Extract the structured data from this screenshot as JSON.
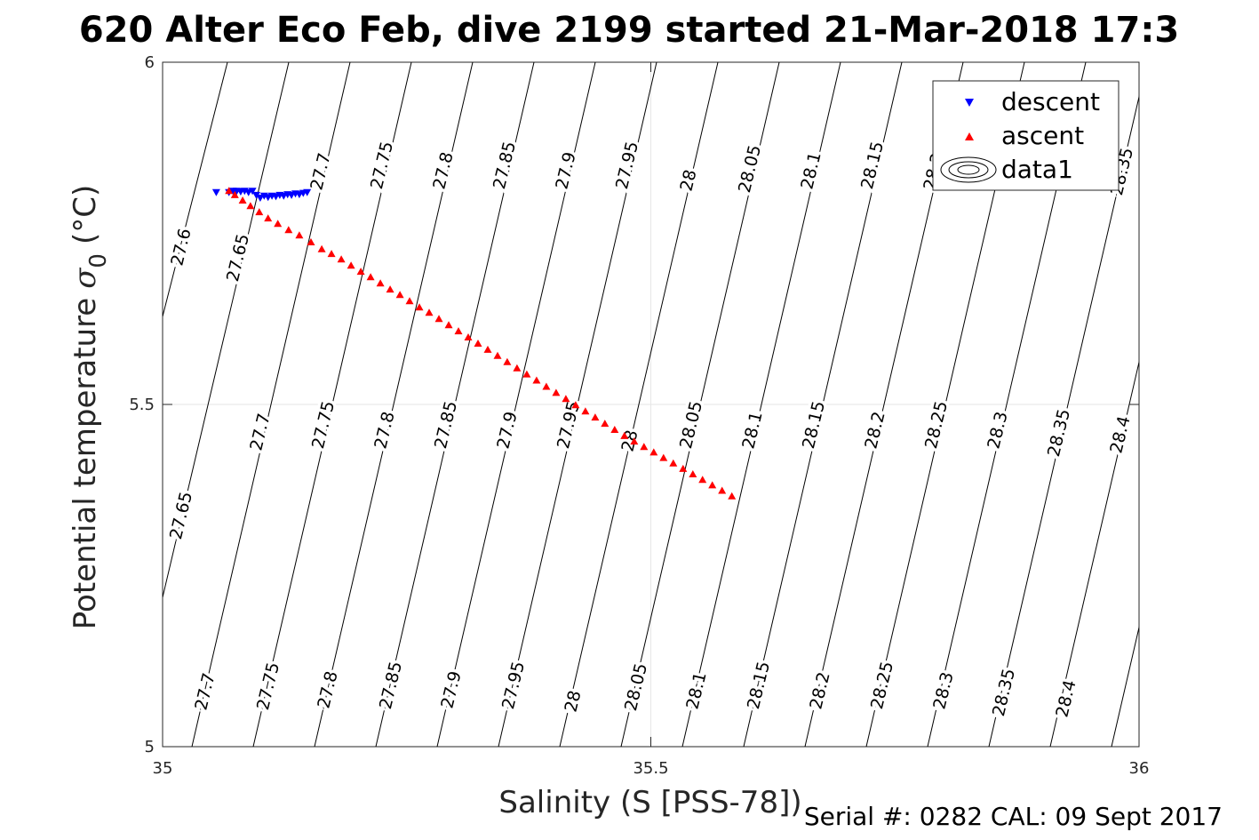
{
  "title": "620 Alter Eco Feb, dive 2199 started 21-Mar-2018 17:3",
  "footer": "Serial #: 0282  CAL: 09 Sept 2017",
  "chart_data": {
    "type": "scatter",
    "xlabel": "Salinity (S [PSS-78])",
    "ylabel_text": "Potential temperature",
    "ylabel_symbol": "σ",
    "ylabel_subscript": "0",
    "ylabel_unit": "(°C)",
    "xlim": [
      35,
      36
    ],
    "ylim": [
      5,
      6
    ],
    "x_ticks": [
      "35",
      "35.5",
      "36"
    ],
    "y_ticks": [
      "5",
      "5.5",
      "6"
    ],
    "grid": true,
    "legend": {
      "placement": "top-right",
      "entries": [
        "descent",
        "ascent",
        "data1"
      ]
    },
    "series": [
      {
        "name": "descent",
        "marker": "triangle-down",
        "color": "#0000ff",
        "x": [
          35.055,
          35.068,
          35.072,
          35.076,
          35.08,
          35.084,
          35.088,
          35.092,
          35.096,
          35.1,
          35.104,
          35.108,
          35.112,
          35.116,
          35.12,
          35.124,
          35.128,
          35.132,
          35.136,
          35.14,
          35.144,
          35.148
        ],
        "y": [
          5.81,
          5.81,
          5.812,
          5.812,
          5.811,
          5.812,
          5.81,
          5.812,
          5.806,
          5.802,
          5.805,
          5.803,
          5.805,
          5.804,
          5.806,
          5.805,
          5.807,
          5.806,
          5.808,
          5.807,
          5.809,
          5.81
        ]
      },
      {
        "name": "ascent",
        "marker": "triangle-up",
        "color": "#ff0000",
        "x": [
          35.068,
          35.074,
          35.082,
          35.09,
          35.099,
          35.108,
          35.118,
          35.129,
          35.14,
          35.152,
          35.163,
          35.173,
          35.183,
          35.193,
          35.203,
          35.213,
          35.223,
          35.233,
          35.243,
          35.253,
          35.263,
          35.273,
          35.283,
          35.293,
          35.303,
          35.313,
          35.323,
          35.333,
          35.343,
          35.353,
          35.363,
          35.373,
          35.383,
          35.393,
          35.403,
          35.413,
          35.423,
          35.433,
          35.443,
          35.453,
          35.463,
          35.473,
          35.483,
          35.493,
          35.503,
          35.513,
          35.523,
          35.533,
          35.543,
          35.553,
          35.563,
          35.573,
          35.583
        ],
        "y": [
          5.812,
          5.806,
          5.798,
          5.79,
          5.781,
          5.772,
          5.764,
          5.755,
          5.747,
          5.737,
          5.727,
          5.72,
          5.712,
          5.703,
          5.694,
          5.686,
          5.677,
          5.668,
          5.66,
          5.651,
          5.642,
          5.634,
          5.625,
          5.616,
          5.607,
          5.598,
          5.589,
          5.58,
          5.571,
          5.562,
          5.553,
          5.544,
          5.535,
          5.526,
          5.517,
          5.508,
          5.499,
          5.49,
          5.481,
          5.472,
          5.463,
          5.454,
          5.446,
          5.438,
          5.43,
          5.422,
          5.414,
          5.406,
          5.398,
          5.39,
          5.382,
          5.374,
          5.366
        ]
      }
    ],
    "contours": {
      "name": "data1",
      "type": "density-isopycnals",
      "levels": [
        "27.6",
        "27.65",
        "27.7",
        "27.75",
        "27.8",
        "27.85",
        "27.9",
        "27.95",
        "28",
        "28.05",
        "28.1",
        "28.15",
        "28.2",
        "28.25",
        "28.3",
        "28.35",
        "28.4"
      ],
      "top_row_labels": [
        "27.6",
        "27.65",
        "27.7",
        "27.75",
        "27.8",
        "27.85",
        "27.9",
        "27.95",
        "28",
        "28.05",
        "28.1",
        "28.15",
        "28.2",
        "28.35"
      ],
      "middle_row_labels": [
        "27.65",
        "27.7",
        "27.75",
        "27.8",
        "27.85",
        "27.9",
        "27.95",
        "28",
        "28.05",
        "28.1",
        "28.15",
        "28.2",
        "28.25",
        "28.3",
        "28.35",
        "28.4"
      ],
      "bottom_row_labels": [
        "27.7",
        "27.75",
        "27.8",
        "27.85",
        "27.9",
        "27.95",
        "28",
        "28.05",
        "28.1",
        "28.15",
        "28.2",
        "28.25",
        "28.3",
        "28.35",
        "28.4"
      ]
    }
  }
}
